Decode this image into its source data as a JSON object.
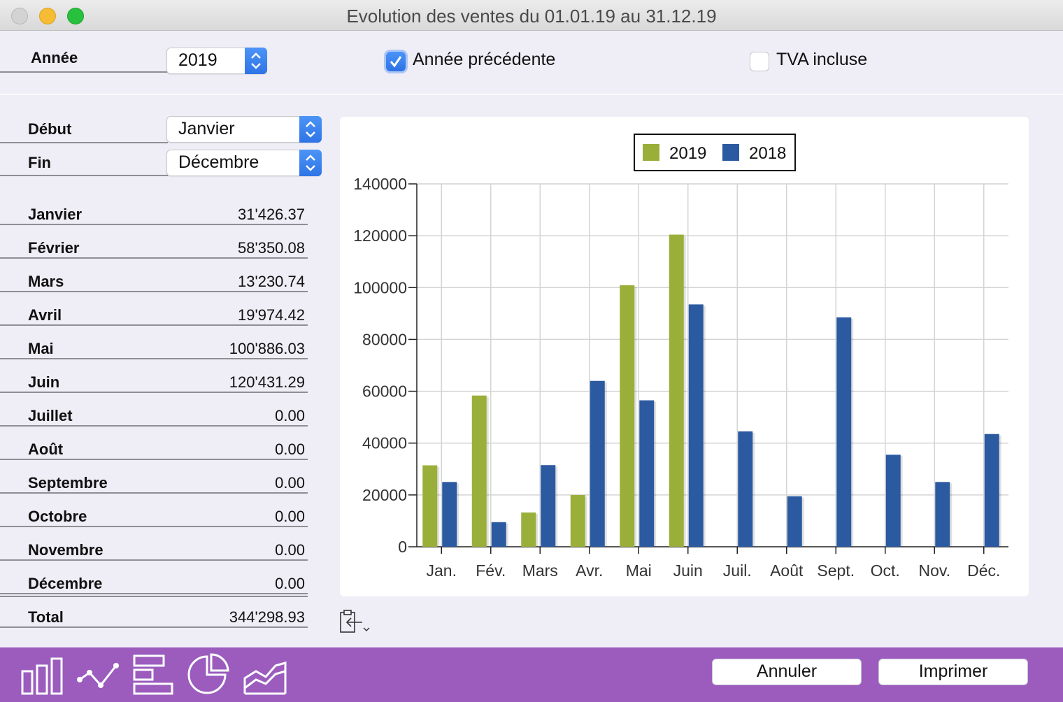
{
  "window": {
    "title": "Evolution des ventes du 01.01.19 au 31.12.19"
  },
  "year": {
    "label": "Année",
    "value": "2019"
  },
  "options": {
    "previous_year": {
      "label": "Année précédente",
      "checked": true
    },
    "vat_included": {
      "label": "TVA incluse",
      "checked": false
    }
  },
  "period": {
    "start_label": "Début",
    "start_value": "Janvier",
    "end_label": "Fin",
    "end_value": "Décembre"
  },
  "months": [
    {
      "name": "Janvier",
      "value": "31'426.37"
    },
    {
      "name": "Février",
      "value": "58'350.08"
    },
    {
      "name": "Mars",
      "value": "13'230.74"
    },
    {
      "name": "Avril",
      "value": "19'974.42"
    },
    {
      "name": "Mai",
      "value": "100'886.03"
    },
    {
      "name": "Juin",
      "value": "120'431.29"
    },
    {
      "name": "Juillet",
      "value": "0.00"
    },
    {
      "name": "Août",
      "value": "0.00"
    },
    {
      "name": "Septembre",
      "value": "0.00"
    },
    {
      "name": "Octobre",
      "value": "0.00"
    },
    {
      "name": "Novembre",
      "value": "0.00"
    },
    {
      "name": "Décembre",
      "value": "0.00"
    }
  ],
  "total": {
    "label": "Total",
    "value": "344'298.93"
  },
  "chart_data": {
    "type": "bar",
    "categories": [
      "Jan.",
      "Fév.",
      "Mars",
      "Avr.",
      "Mai",
      "Juin",
      "Juil.",
      "Août",
      "Sept.",
      "Oct.",
      "Nov.",
      "Déc."
    ],
    "series": [
      {
        "name": "2019",
        "color": "#9aaf3a",
        "values": [
          31426,
          58350,
          13231,
          19974,
          100886,
          120431,
          0,
          0,
          0,
          0,
          0,
          0
        ]
      },
      {
        "name": "2018",
        "color": "#2c5aa0",
        "values": [
          25000,
          9500,
          31500,
          64000,
          56500,
          93500,
          44500,
          19500,
          88500,
          35500,
          25000,
          43500
        ]
      }
    ],
    "ylim": [
      0,
      140000
    ],
    "yticks": [
      0,
      20000,
      40000,
      60000,
      80000,
      100000,
      120000,
      140000
    ],
    "grid": true,
    "legend": "top-center"
  },
  "footer": {
    "chart_types": [
      "bar-chart-icon",
      "line-chart-icon",
      "horizontal-bar-chart-icon",
      "pie-chart-icon",
      "area-chart-icon"
    ],
    "cancel_label": "Annuler",
    "print_label": "Imprimer"
  },
  "colors": {
    "accent": "#9b5cbe",
    "series_2019": "#9aaf3a",
    "series_2018": "#2c5aa0",
    "control_blue": "#3479ea"
  }
}
